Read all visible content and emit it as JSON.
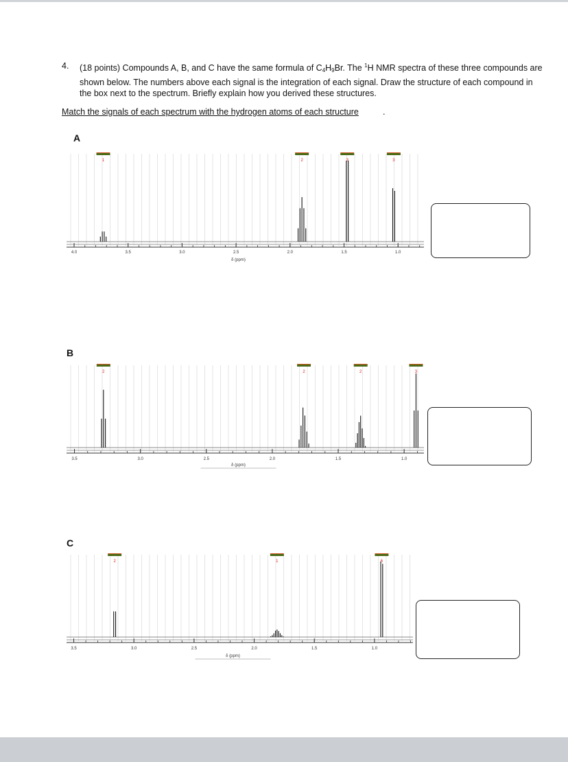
{
  "question": {
    "number": "4.",
    "points": "(18 points)",
    "text_part1": "Compounds A, B, and C have the same formula of C",
    "sub_c": "4",
    "text_h": "H",
    "sub_h": "9",
    "text_part2": "Br. The ",
    "sup_1": "1",
    "text_part3": "H NMR spectra of these three compounds are shown below. The numbers above each signal is the integration of each signal. Draw the structure of each compound in the box next to the spectrum.  Briefly explain how you derived these structures."
  },
  "instruction": "Match the signals of each spectrum with the hydrogen atoms of each structure",
  "instruction_end": ".",
  "colors": {
    "integration_bar": "#4a6b17",
    "integration_bar_top": "#d85a2a",
    "integration_label": "#e02020",
    "peak": "#111111",
    "grid": "#d8d8d8",
    "axis": "#333333"
  },
  "spectra": [
    {
      "id": "A",
      "label": "A",
      "axis_title": "δ (ppm)",
      "ticks": [
        "4.0",
        "3.5",
        "3.0",
        "2.5",
        "2.0",
        "1.5",
        "1.0"
      ],
      "signals": [
        {
          "ppm": 3.73,
          "integration": "1",
          "lines": [
            0.25,
            0.5,
            0.5,
            0.25
          ],
          "height": 0.25
        },
        {
          "ppm": 1.89,
          "integration": "2",
          "lines": [
            0.3,
            0.75,
            1.0,
            0.75,
            0.3
          ],
          "height": 0.55
        },
        {
          "ppm": 1.47,
          "integration": "3",
          "lines": [
            1.0,
            1.0
          ],
          "height": 1.0
        },
        {
          "ppm": 1.04,
          "integration": "3",
          "lines": [
            1.0,
            0.95
          ],
          "height": 0.66
        }
      ]
    },
    {
      "id": "B",
      "label": "B",
      "axis_title": "δ (ppm)",
      "ticks": [
        "3.5",
        "3.0",
        "2.5",
        "2.0",
        "1.5",
        "1.0"
      ],
      "signals": [
        {
          "ppm": 3.28,
          "integration": "2",
          "lines": [
            0.5,
            1.0,
            0.5
          ],
          "height": 0.78
        },
        {
          "ppm": 1.76,
          "integration": "2",
          "lines": [
            0.2,
            0.55,
            1.0,
            0.8,
            0.4,
            0.1
          ],
          "height": 0.54
        },
        {
          "ppm": 1.33,
          "integration": "2",
          "lines": [
            0.15,
            0.45,
            0.8,
            1.0,
            0.6,
            0.3,
            0.05
          ],
          "height": 0.43
        },
        {
          "ppm": 0.91,
          "integration": "3",
          "lines": [
            0.5,
            1.0,
            0.5
          ],
          "height": 1.0
        }
      ]
    },
    {
      "id": "C",
      "label": "C",
      "axis_title": "δ (ppm)",
      "ticks": [
        "3.5",
        "3.0",
        "2.5",
        "2.0",
        "1.5",
        "1.0"
      ],
      "signals": [
        {
          "ppm": 3.16,
          "integration": "2",
          "lines": [
            1.0,
            1.0
          ],
          "height": 0.34
        },
        {
          "ppm": 1.81,
          "integration": "1",
          "lines": [
            0.1,
            0.25,
            0.5,
            0.85,
            1.0,
            0.8,
            0.5,
            0.25,
            0.08
          ],
          "height": 0.1
        },
        {
          "ppm": 0.94,
          "integration": "6",
          "lines": [
            1.0,
            0.97
          ],
          "height": 1.0
        }
      ]
    }
  ]
}
